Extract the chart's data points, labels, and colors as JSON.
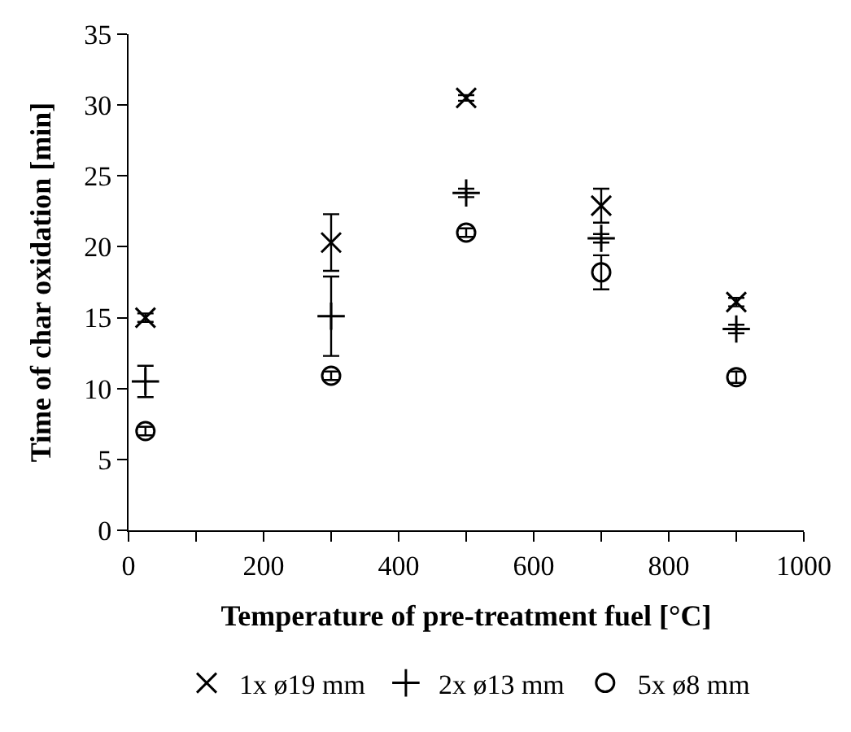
{
  "chart_data": {
    "type": "scatter",
    "xlabel": "Temperature of pre-treatment fuel [°C]",
    "ylabel": "Time of char oxidation [min]",
    "x": [
      25,
      300,
      500,
      700,
      900
    ],
    "xlim": [
      0,
      1000
    ],
    "xticks": [
      0,
      200,
      400,
      600,
      800,
      1000
    ],
    "ylim": [
      0,
      35
    ],
    "yticks": [
      0,
      5,
      10,
      15,
      20,
      25,
      30,
      35
    ],
    "legend": "bottom",
    "series": [
      {
        "name": "1x ø19 mm",
        "color": "#000000",
        "marker": "cross",
        "values": [
          15.0,
          20.3,
          30.5,
          22.9,
          16.1
        ],
        "errors": [
          0.3,
          2.0,
          0.2,
          1.2,
          0.3
        ]
      },
      {
        "name": "2x ø13 mm",
        "color": "#000000",
        "marker": "plus",
        "values": [
          10.5,
          15.1,
          23.8,
          20.6,
          14.2
        ],
        "errors": [
          1.1,
          2.8,
          0.3,
          0.3,
          0.3
        ]
      },
      {
        "name": "5x ø8 mm",
        "color": "#000000",
        "marker": "circle",
        "values": [
          7.0,
          10.9,
          21.0,
          18.2,
          10.8
        ],
        "errors": [
          0.3,
          0.3,
          0.3,
          1.2,
          0.4
        ]
      }
    ]
  }
}
